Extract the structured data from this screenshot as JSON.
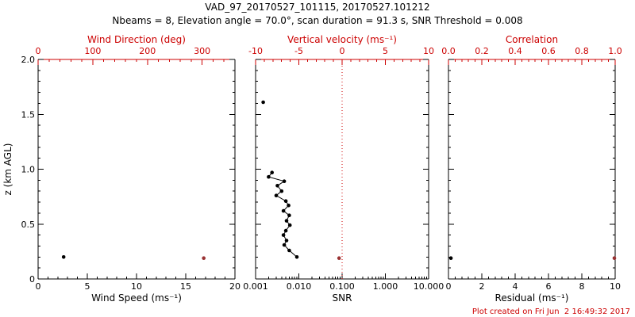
{
  "colors": {
    "black": "#000000",
    "red": "#cc0000",
    "dark_red": "#9a3334"
  },
  "chart_data": {
    "type": "scatter",
    "title": "VAD_97_20170527_101115, 20170527.101212",
    "subtitle": "Nbeams = 8, Elevation angle = 70.0°, scan duration = 91.3 s, SNR Threshold = 0.008",
    "annotation": "Plot created on Fri Jun  2 16:49:32 2017",
    "panels": [
      {
        "id": "wind",
        "y_axis": {
          "title": "z (km AGL)",
          "lim": [
            0,
            2
          ],
          "ticks": [
            0,
            0.5,
            1,
            1.5,
            2
          ],
          "labels": [
            "0",
            "0.5",
            "1.0",
            "1.5",
            "2.0"
          ],
          "show_labels": true
        },
        "bottom_axis": {
          "title": "Wind Speed (ms⁻¹)",
          "scale": "linear",
          "lim": [
            0,
            20
          ],
          "ticks": [
            0,
            5,
            10,
            15,
            20
          ],
          "labels": [
            "0",
            "5",
            "10",
            "15",
            "20"
          ],
          "color": "black"
        },
        "top_axis": {
          "title": "Wind Direction (deg)",
          "scale": "linear",
          "lim": [
            0,
            360
          ],
          "ticks": [
            0,
            100,
            200,
            300
          ],
          "labels": [
            "0",
            "100",
            "200",
            "300"
          ],
          "color": "red"
        },
        "series": [
          {
            "name": "wind-speed",
            "axis": "bottom",
            "color": "black",
            "marker": true,
            "line": false,
            "points": [
              [
                2.6,
                0.2
              ]
            ]
          },
          {
            "name": "wind-direction",
            "axis": "top",
            "color": "dark_red",
            "marker": true,
            "line": false,
            "points": [
              [
                303,
                0.19
              ]
            ]
          }
        ]
      },
      {
        "id": "snr",
        "y_axis": {
          "title": "",
          "lim": [
            0,
            2
          ],
          "ticks": [
            0,
            0.5,
            1,
            1.5,
            2
          ],
          "labels": [
            "",
            "",
            "",
            "",
            ""
          ],
          "show_labels": false
        },
        "bottom_axis": {
          "title": "SNR",
          "scale": "log",
          "lim": [
            0.001,
            10
          ],
          "ticks": [
            0.001,
            0.01,
            0.1,
            1,
            10
          ],
          "labels": [
            "0.001",
            "0.010",
            "0.100",
            "1.000",
            "10.000"
          ],
          "color": "black"
        },
        "top_axis": {
          "title": "Vertical velocity (ms⁻¹)",
          "scale": "linear",
          "lim": [
            -10,
            10
          ],
          "ticks": [
            -10,
            -5,
            0,
            5,
            10
          ],
          "labels": [
            "-10",
            "-5",
            "0",
            "5",
            "10"
          ],
          "color": "red"
        },
        "ref_lines": [
          {
            "axis": "top",
            "x": 0,
            "style": "dotted",
            "color": "red"
          }
        ],
        "series": [
          {
            "name": "snr-isolated",
            "axis": "bottom",
            "color": "black",
            "marker": true,
            "line": false,
            "points": [
              [
                0.0015,
                1.61
              ]
            ]
          },
          {
            "name": "snr-profile",
            "axis": "bottom",
            "color": "black",
            "marker": true,
            "line": true,
            "points": [
              [
                0.0024,
                0.97
              ],
              [
                0.002,
                0.93
              ],
              [
                0.0046,
                0.89
              ],
              [
                0.0032,
                0.85
              ],
              [
                0.004,
                0.8
              ],
              [
                0.003,
                0.76
              ],
              [
                0.005,
                0.71
              ],
              [
                0.0058,
                0.67
              ],
              [
                0.0044,
                0.62
              ],
              [
                0.006,
                0.58
              ],
              [
                0.0052,
                0.53
              ],
              [
                0.0062,
                0.49
              ],
              [
                0.005,
                0.44
              ],
              [
                0.0044,
                0.4
              ],
              [
                0.0052,
                0.35
              ],
              [
                0.0046,
                0.31
              ],
              [
                0.006,
                0.26
              ],
              [
                0.009,
                0.2
              ]
            ]
          },
          {
            "name": "vertical-velocity",
            "axis": "top",
            "color": "dark_red",
            "marker": true,
            "line": false,
            "points": [
              [
                -0.35,
                0.19
              ]
            ]
          }
        ]
      },
      {
        "id": "residual",
        "y_axis": {
          "title": "",
          "lim": [
            0,
            2
          ],
          "ticks": [
            0,
            0.5,
            1,
            1.5,
            2
          ],
          "labels": [
            "",
            "",
            "",
            "",
            ""
          ],
          "show_labels": false
        },
        "bottom_axis": {
          "title": "Residual (ms⁻¹)",
          "scale": "linear",
          "lim": [
            0,
            10
          ],
          "ticks": [
            0,
            2,
            4,
            6,
            8,
            10
          ],
          "labels": [
            "0",
            "2",
            "4",
            "6",
            "8",
            "10"
          ],
          "color": "black"
        },
        "top_axis": {
          "title": "Correlation",
          "scale": "linear",
          "lim": [
            0,
            1
          ],
          "ticks": [
            0,
            0.2,
            0.4,
            0.6,
            0.8,
            1
          ],
          "labels": [
            "0.0",
            "0.2",
            "0.4",
            "0.6",
            "0.8",
            "1.0"
          ],
          "color": "red"
        },
        "series": [
          {
            "name": "residual",
            "axis": "bottom",
            "color": "black",
            "marker": true,
            "line": false,
            "points": [
              [
                0.15,
                0.19
              ]
            ]
          },
          {
            "name": "correlation",
            "axis": "top",
            "color": "dark_red",
            "marker": true,
            "line": false,
            "points": [
              [
                0.995,
                0.19
              ]
            ]
          }
        ]
      }
    ]
  }
}
